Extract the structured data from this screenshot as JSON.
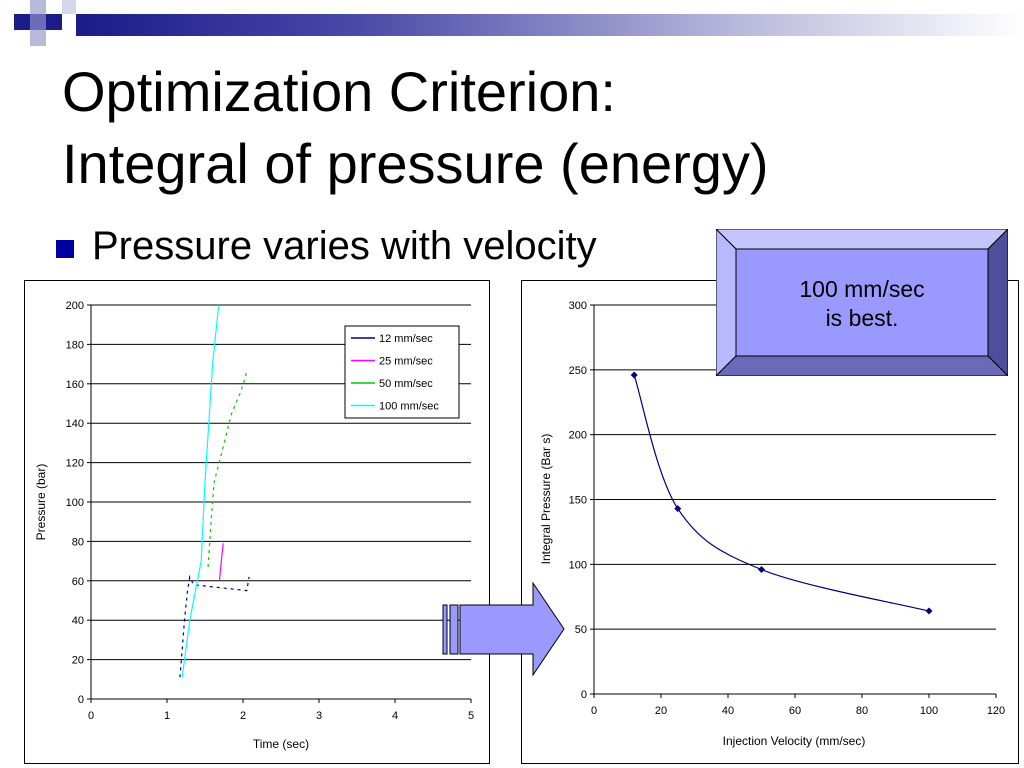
{
  "slide": {
    "title_line1": "Optimization Criterion:",
    "title_line2": "Integral of pressure (energy)",
    "bullet": "Pressure varies with velocity",
    "callout_line1": "100 mm/sec",
    "callout_line2": "is best.",
    "colors": {
      "bullet": "#0000a0",
      "header_dark": "#1b1b8a",
      "callout_fill": "#9999ff",
      "arrow_fill": "#9999ff"
    }
  },
  "chart_data": [
    {
      "type": "line",
      "xlabel": "Time (sec)",
      "ylabel": "Pressure (bar)",
      "xlim": [
        0,
        5
      ],
      "ylim": [
        0,
        200
      ],
      "x_ticks": [
        "0",
        "1",
        "2",
        "3",
        "4",
        "5"
      ],
      "y_ticks": [
        "0",
        "20",
        "40",
        "60",
        "80",
        "100",
        "120",
        "140",
        "160",
        "180",
        "200"
      ],
      "grid": true,
      "legend_position": "top-right",
      "series": [
        {
          "name": "12 mm/sec",
          "color": "#000080",
          "style": "dashed",
          "points": [
            [
              1.17,
              11
            ],
            [
              1.2,
              25
            ],
            [
              1.23,
              40
            ],
            [
              1.27,
              55
            ],
            [
              1.3,
              62
            ],
            [
              1.35,
              58
            ],
            [
              2.05,
              55
            ],
            [
              2.08,
              62
            ]
          ]
        },
        {
          "name": "25 mm/sec",
          "color": "#ff00ff",
          "style": "solid",
          "points": [
            [
              1.69,
              60
            ],
            [
              1.72,
              72
            ],
            [
              1.74,
              79
            ]
          ]
        },
        {
          "name": "50 mm/sec",
          "color": "#00cc00",
          "style": "dashed",
          "points": [
            [
              1.54,
              67
            ],
            [
              1.58,
              90
            ],
            [
              1.62,
              110
            ],
            [
              1.72,
              125
            ],
            [
              1.85,
              145
            ],
            [
              1.96,
              155
            ],
            [
              2.03,
              163
            ],
            [
              2.05,
              167
            ]
          ]
        },
        {
          "name": "100 mm/sec",
          "color": "#00ffff",
          "style": "solid",
          "points": [
            [
              1.2,
              11
            ],
            [
              1.3,
              40
            ],
            [
              1.4,
              60
            ],
            [
              1.45,
              70
            ],
            [
              1.5,
              110
            ],
            [
              1.55,
              140
            ],
            [
              1.6,
              170
            ],
            [
              1.68,
              200
            ]
          ]
        }
      ]
    },
    {
      "type": "scatter",
      "xlabel": "Injection Velocity (mm/sec)",
      "ylabel": "Integral Pressure (Bar s)",
      "xlim": [
        0,
        120
      ],
      "ylim": [
        0,
        300
      ],
      "x_ticks": [
        "0",
        "20",
        "40",
        "60",
        "80",
        "100",
        "120"
      ],
      "y_ticks": [
        "0",
        "50",
        "100",
        "150",
        "200",
        "250",
        "300"
      ],
      "grid": true,
      "series": [
        {
          "color": "#000080",
          "marker": "diamond",
          "smooth": true,
          "x": [
            12,
            25,
            50,
            100
          ],
          "y": [
            246,
            143,
            96,
            64
          ]
        }
      ]
    }
  ]
}
